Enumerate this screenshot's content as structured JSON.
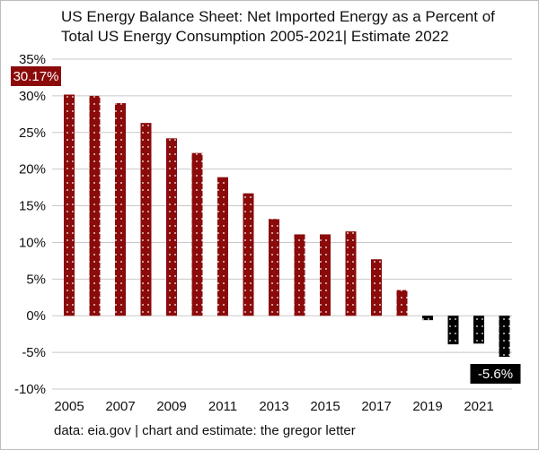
{
  "chart_data": {
    "type": "bar",
    "title_lines": [
      "US Energy Balance Sheet: Net Imported Energy as a Percent of",
      "Total US Energy Consumption 2005-2021| Estimate 2022"
    ],
    "footer": "data: eia.gov | chart and estimate: the gregor letter",
    "categories": [
      "2005",
      "2006",
      "2007",
      "2008",
      "2009",
      "2010",
      "2011",
      "2012",
      "2013",
      "2014",
      "2015",
      "2016",
      "2017",
      "2018",
      "2019",
      "2020",
      "2021",
      "2022"
    ],
    "x_tick_labels": [
      "2005",
      "2007",
      "2009",
      "2011",
      "2013",
      "2015",
      "2017",
      "2019",
      "2021"
    ],
    "values": [
      30.17,
      30.0,
      29.0,
      26.3,
      24.2,
      22.2,
      18.9,
      16.7,
      13.2,
      11.1,
      11.1,
      11.5,
      7.7,
      3.5,
      -0.6,
      -3.9,
      -3.8,
      -5.6
    ],
    "y_tick_labels": [
      "35%",
      "30%",
      "25%",
      "20%",
      "15%",
      "10%",
      "5%",
      "0%",
      "-5%",
      "-10%"
    ],
    "ylim": [
      -10,
      35
    ],
    "ystep": 5,
    "grid": true,
    "annotations": [
      {
        "text": "30.17%",
        "category": "2005"
      },
      {
        "text": "-5.6%",
        "category": "2022"
      }
    ],
    "colors": {
      "positive": "#8b0a0a",
      "negative": "#000000",
      "dot": "#ffffff",
      "grid": "#c8c8c8"
    }
  }
}
